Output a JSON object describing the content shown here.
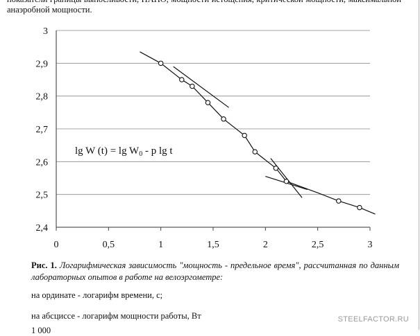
{
  "top_paragraph": "показатели границы выносливости, ПАНО, мощности истощения, критической мощности, максимальной анаэробной мощности.",
  "chart_data": {
    "type": "scatter",
    "x_ticks": [
      "0",
      "0,5",
      "1",
      "1,5",
      "2",
      "2,5",
      "3"
    ],
    "y_ticks": [
      "2,4",
      "2,5",
      "2,6",
      "2,7",
      "2,8",
      "2,9",
      "3"
    ],
    "xlim": [
      0,
      3
    ],
    "ylim": [
      2.4,
      3
    ],
    "grid": "horizontal",
    "points": [
      {
        "x": 1.0,
        "y": 2.9
      },
      {
        "x": 1.2,
        "y": 2.85
      },
      {
        "x": 1.3,
        "y": 2.83
      },
      {
        "x": 1.45,
        "y": 2.78
      },
      {
        "x": 1.6,
        "y": 2.73
      },
      {
        "x": 1.8,
        "y": 2.68
      },
      {
        "x": 1.9,
        "y": 2.63
      },
      {
        "x": 2.1,
        "y": 2.58
      },
      {
        "x": 2.2,
        "y": 2.54
      },
      {
        "x": 2.7,
        "y": 2.48
      },
      {
        "x": 2.9,
        "y": 2.46
      }
    ],
    "lines": [
      {
        "name": "curve",
        "points": [
          [
            0.8,
            2.935
          ],
          [
            1.0,
            2.9
          ],
          [
            1.2,
            2.85
          ],
          [
            1.3,
            2.83
          ],
          [
            1.45,
            2.78
          ],
          [
            1.6,
            2.73
          ],
          [
            1.8,
            2.68
          ],
          [
            1.9,
            2.63
          ],
          [
            2.1,
            2.58
          ],
          [
            2.2,
            2.54
          ],
          [
            2.5,
            2.505
          ],
          [
            2.7,
            2.48
          ],
          [
            2.9,
            2.46
          ],
          [
            3.05,
            2.44
          ]
        ]
      },
      {
        "name": "tangent-1",
        "points": [
          [
            1.12,
            2.89
          ],
          [
            1.65,
            2.765
          ]
        ]
      },
      {
        "name": "tangent-2",
        "points": [
          [
            2.0,
            2.555
          ],
          [
            2.4,
            2.515
          ]
        ]
      },
      {
        "name": "tangent-3",
        "points": [
          [
            2.05,
            2.61
          ],
          [
            2.35,
            2.49
          ]
        ]
      }
    ],
    "annotation_parts": {
      "a": "lg W (t) = lg W",
      "sub": "0",
      "b": " - p lg t"
    }
  },
  "caption": {
    "number": "Рис. 1.",
    "text": "Логарифмическая зависимость \"мощность - предельное время\", рассчитанная по данным лабораторных опытов в работе на велоэргометре:"
  },
  "notes": [
    "на ординате - логарифм времени, с;",
    "на абсциссе - логарифм мощности работы, Вт",
    "1 000"
  ],
  "watermark": "STEELFACTOR.RU"
}
